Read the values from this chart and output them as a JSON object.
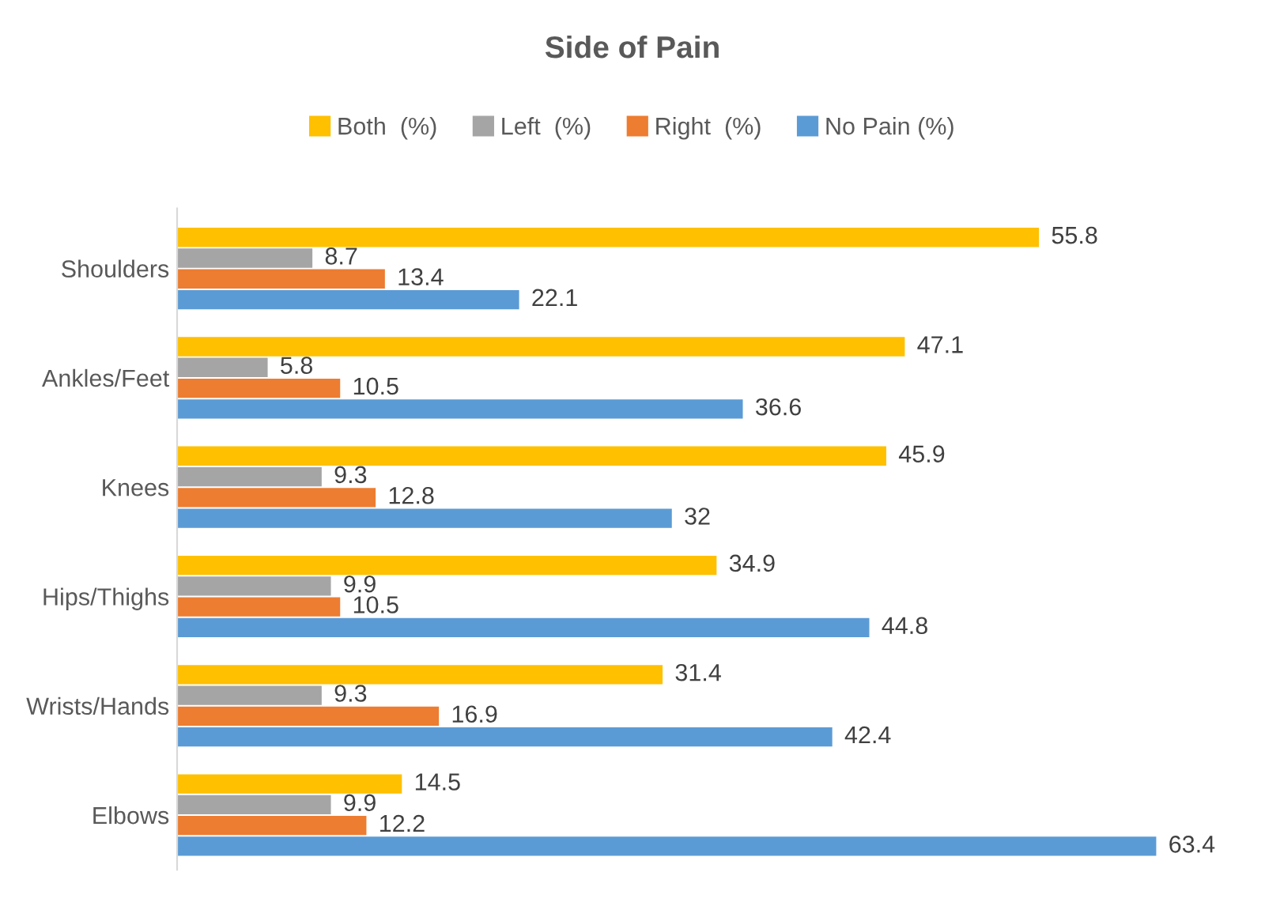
{
  "chart_data": {
    "type": "bar",
    "orientation": "horizontal",
    "title": "Side of Pain",
    "categories": [
      "Shoulders",
      "Ankles/Feet",
      "Knees",
      "Hips/Thighs",
      "Wrists/Hands",
      "Elbows"
    ],
    "series": [
      {
        "name": "Both  (%)",
        "color": "#ffc000",
        "values": [
          55.8,
          47.1,
          45.9,
          34.9,
          31.4,
          14.5
        ]
      },
      {
        "name": "Left  (%)",
        "color": "#a5a5a5",
        "values": [
          8.7,
          5.8,
          9.3,
          9.9,
          9.3,
          9.9
        ]
      },
      {
        "name": "Right  (%)",
        "color": "#ed7d31",
        "values": [
          13.4,
          10.5,
          12.8,
          10.5,
          16.9,
          12.2
        ]
      },
      {
        "name": "No Pain (%)",
        "color": "#5b9bd5",
        "values": [
          22.1,
          36.6,
          32,
          44.8,
          42.4,
          63.4
        ]
      }
    ],
    "data_labels": true,
    "grid": false,
    "legend": "top",
    "tick_labels": "y"
  }
}
